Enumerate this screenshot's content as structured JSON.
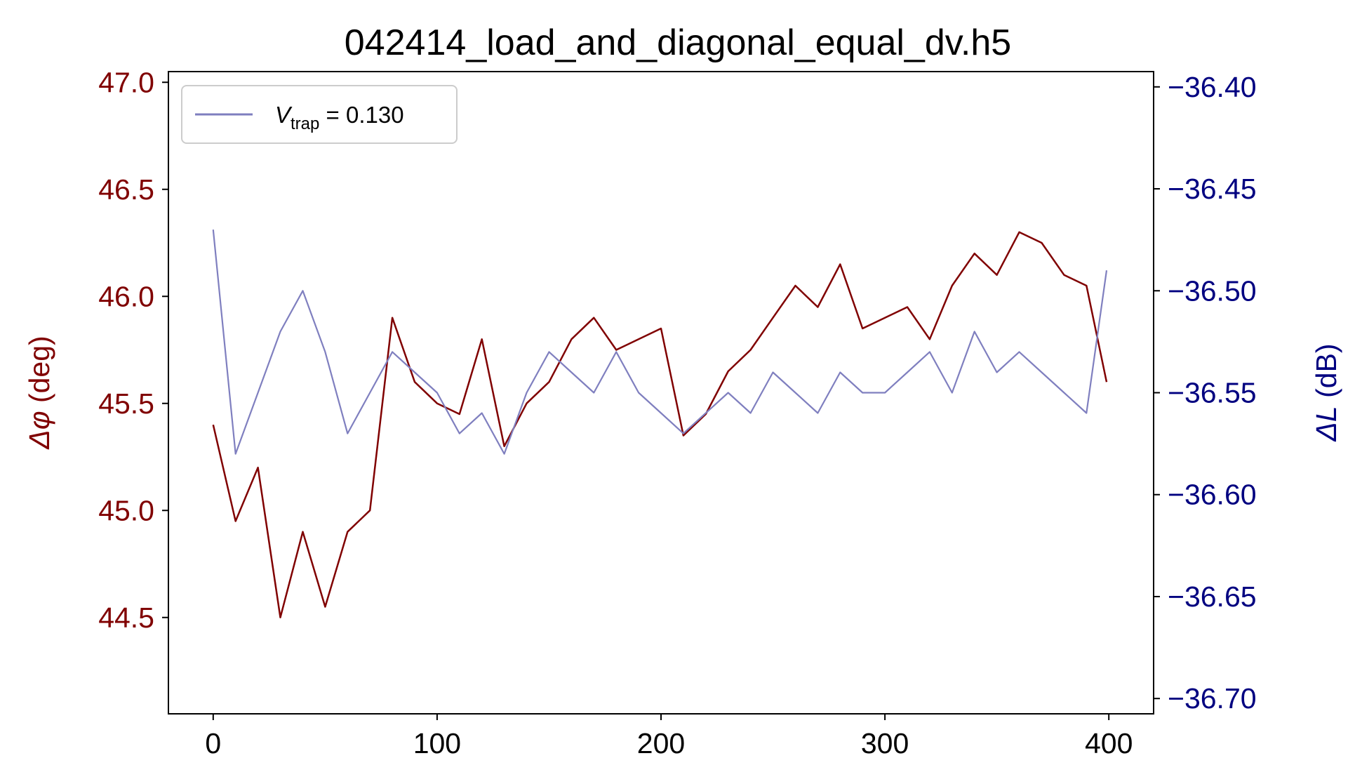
{
  "chart_data": {
    "type": "line",
    "title": "042414_load_and_diagonal_equal_dv.h5",
    "xlim": [
      -20,
      420
    ],
    "x_ticks": [
      "0",
      "100",
      "200",
      "300",
      "400"
    ],
    "left_axis": {
      "label_symbol": "Δφ",
      "label_unit": " (deg)",
      "ylim": [
        44.05,
        47.05
      ],
      "ticks": [
        "44.5",
        "45.0",
        "45.5",
        "46.0",
        "46.5",
        "47.0"
      ],
      "color": "#800000"
    },
    "right_axis": {
      "label_symbol": "ΔL",
      "label_unit": " (dB)",
      "ylim": [
        -36.7075,
        -36.3925
      ],
      "ticks": [
        "−36.70",
        "−36.65",
        "−36.60",
        "−36.55",
        "−36.50",
        "−36.45",
        "−36.40"
      ],
      "color": "#000080"
    },
    "legend": {
      "position": "top-left",
      "label_var": "V",
      "label_sub": "trap",
      "label_rest": " = 0.130"
    },
    "grid": false,
    "series": [
      {
        "axis": "left",
        "color": "#800000",
        "x": [
          0,
          10,
          20,
          30,
          40,
          50,
          60,
          70,
          80,
          90,
          100,
          110,
          120,
          130,
          140,
          150,
          160,
          170,
          180,
          190,
          200,
          210,
          220,
          230,
          240,
          250,
          260,
          270,
          280,
          290,
          300,
          310,
          320,
          330,
          340,
          350,
          360,
          370,
          380,
          390,
          399
        ],
        "values": [
          45.4,
          44.95,
          45.2,
          44.5,
          44.9,
          44.55,
          44.9,
          45.0,
          45.9,
          45.6,
          45.5,
          45.45,
          45.8,
          45.3,
          45.5,
          45.6,
          45.8,
          45.9,
          45.75,
          45.8,
          45.85,
          45.35,
          45.45,
          45.65,
          45.75,
          45.9,
          46.05,
          45.95,
          46.15,
          45.85,
          45.9,
          45.95,
          45.8,
          46.05,
          46.2,
          46.1,
          46.3,
          46.25,
          46.1,
          46.05,
          45.6
        ]
      },
      {
        "axis": "right",
        "color": "#7f7fbf",
        "x": [
          0,
          10,
          20,
          30,
          40,
          50,
          60,
          70,
          80,
          90,
          100,
          110,
          120,
          130,
          140,
          150,
          160,
          170,
          180,
          190,
          200,
          210,
          220,
          230,
          240,
          250,
          260,
          270,
          280,
          290,
          300,
          310,
          320,
          330,
          340,
          350,
          360,
          370,
          380,
          390,
          399
        ],
        "values": [
          -36.47,
          -36.58,
          -36.55,
          -36.52,
          -36.5,
          -36.53,
          -36.57,
          -36.55,
          -36.53,
          -36.54,
          -36.55,
          -36.57,
          -36.56,
          -36.58,
          -36.55,
          -36.53,
          -36.54,
          -36.55,
          -36.53,
          -36.55,
          -36.56,
          -36.57,
          -36.56,
          -36.55,
          -36.56,
          -36.54,
          -36.55,
          -36.56,
          -36.54,
          -36.55,
          -36.55,
          -36.54,
          -36.53,
          -36.55,
          -36.52,
          -36.54,
          -36.53,
          -36.54,
          -36.55,
          -36.56,
          -36.49
        ]
      }
    ]
  }
}
